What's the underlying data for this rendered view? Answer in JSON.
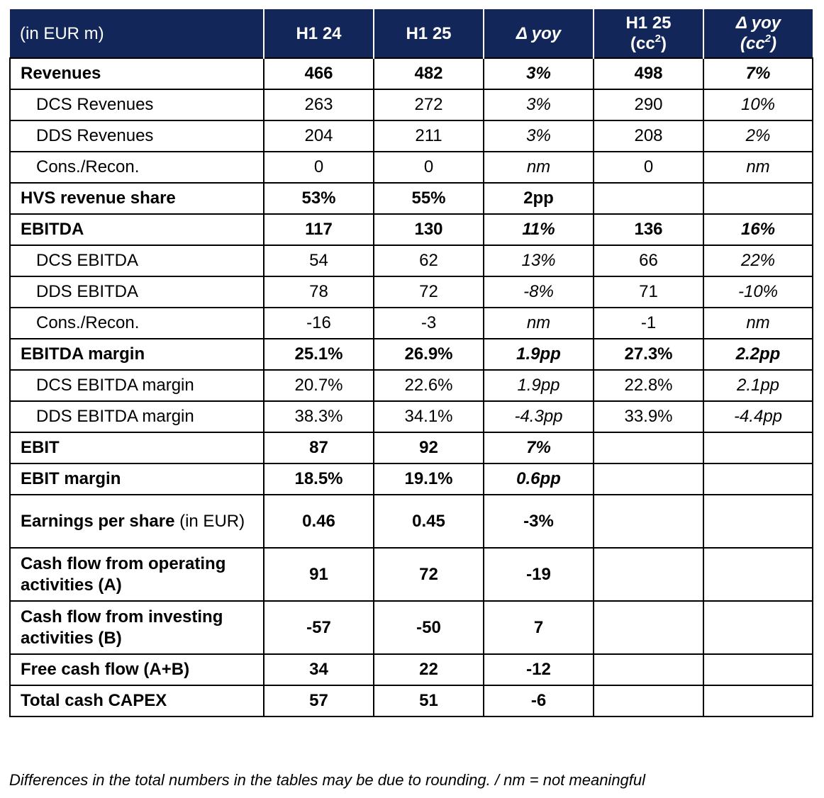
{
  "header": {
    "label": "(in EUR m)",
    "col1": "H1 24",
    "col2": "H1 25",
    "col3": "Δ yoy",
    "col4_line1": "H1 25",
    "col4_line2_pre": "(cc",
    "col4_sup": "2",
    "col4_line2_post": ")",
    "col5_line1": "Δ yoy",
    "col5_line2_pre": "(cc",
    "col5_sup": "2",
    "col5_line2_post": ")"
  },
  "rows": [
    {
      "label": "Revenues",
      "v1": "466",
      "v2": "482",
      "v3": "3%",
      "v4": "498",
      "v5": "7%"
    },
    {
      "label": "DCS Revenues",
      "v1": "263",
      "v2": "272",
      "v3": "3%",
      "v4": "290",
      "v5": "10%"
    },
    {
      "label": "DDS Revenues",
      "v1": "204",
      "v2": "211",
      "v3": "3%",
      "v4": "208",
      "v5": "2%"
    },
    {
      "label": "Cons./Recon.",
      "v1": "0",
      "v2": "0",
      "v3": "nm",
      "v4": "0",
      "v5": "nm"
    },
    {
      "label": "HVS revenue share",
      "v1": "53%",
      "v2": "55%",
      "v3": "2pp",
      "v4": "",
      "v5": ""
    },
    {
      "label": "EBITDA",
      "v1": "117",
      "v2": "130",
      "v3": "11%",
      "v4": "136",
      "v5": "16%"
    },
    {
      "label": "DCS EBITDA",
      "v1": "54",
      "v2": "62",
      "v3": "13%",
      "v4": "66",
      "v5": "22%"
    },
    {
      "label": "DDS EBITDA",
      "v1": "78",
      "v2": "72",
      "v3": "-8%",
      "v4": "71",
      "v5": "-10%"
    },
    {
      "label": "Cons./Recon.",
      "v1": "-16",
      "v2": "-3",
      "v3": "nm",
      "v4": "-1",
      "v5": "nm"
    },
    {
      "label": "EBITDA margin",
      "v1": "25.1%",
      "v2": "26.9%",
      "v3": "1.9pp",
      "v4": "27.3%",
      "v5": "2.2pp"
    },
    {
      "label": "DCS EBITDA margin",
      "v1": "20.7%",
      "v2": "22.6%",
      "v3": "1.9pp",
      "v4": "22.8%",
      "v5": "2.1pp"
    },
    {
      "label": "DDS EBITDA margin",
      "v1": "38.3%",
      "v2": "34.1%",
      "v3": "-4.3pp",
      "v4": "33.9%",
      "v5": "-4.4pp"
    },
    {
      "label": "EBIT",
      "v1": "87",
      "v2": "92",
      "v3": "7%",
      "v4": "",
      "v5": ""
    },
    {
      "label": "EBIT margin",
      "v1": "18.5%",
      "v2": "19.1%",
      "v3": "0.6pp",
      "v4": "",
      "v5": ""
    },
    {
      "label": "Earnings per share",
      "unit": " (in EUR)",
      "v1": "0.46",
      "v2": "0.45",
      "v3": "-3%",
      "v4": "",
      "v5": ""
    },
    {
      "label": "Cash flow from operating activities (A)",
      "v1": "91",
      "v2": "72",
      "v3": "-19",
      "v4": "",
      "v5": ""
    },
    {
      "label": "Cash flow from investing activities (B)",
      "v1": "-57",
      "v2": "-50",
      "v3": "7",
      "v4": "",
      "v5": ""
    },
    {
      "label": "Free cash flow (A+B)",
      "v1": "34",
      "v2": "22",
      "v3": "-12",
      "v4": "",
      "v5": ""
    },
    {
      "label": "Total cash CAPEX",
      "v1": "57",
      "v2": "51",
      "v3": "-6",
      "v4": "",
      "v5": ""
    }
  ],
  "footnote": "Differences in the total numbers in the tables may be due to rounding. / nm = not meaningful",
  "colors": {
    "header_background": "#12265a",
    "header_text": "#ffffff",
    "border": "#000000"
  }
}
